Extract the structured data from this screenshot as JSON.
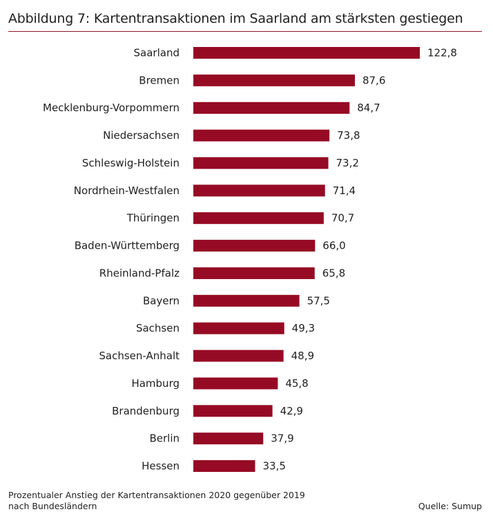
{
  "header": {
    "title": "Abbildung 7: Kartentransaktionen im Saarland am stärksten gestiegen"
  },
  "footer": {
    "note_line1": "Prozentualer Anstieg der Kartentransaktionen 2020 gegenüber 2019",
    "note_line2": "nach Bundesländern",
    "source": "Quelle: Sumup"
  },
  "colors": {
    "bar": "#960a24",
    "title_rule": "#8c1a2c",
    "text": "#1f1f1f"
  },
  "chart_data": {
    "type": "bar",
    "orientation": "horizontal",
    "title": "Abbildung 7: Kartentransaktionen im Saarland am stärksten gestiegen",
    "xlabel": "",
    "ylabel": "",
    "grid": false,
    "xlim": [
      0,
      122.8
    ],
    "categories": [
      "Saarland",
      "Bremen",
      "Mecklenburg-Vorpommern",
      "Niedersachsen",
      "Schleswig-Holstein",
      "Nordrhein-Westfalen",
      "Thüringen",
      "Baden-Württemberg",
      "Rheinland-Pfalz",
      "Bayern",
      "Sachsen",
      "Sachsen-Anhalt",
      "Hamburg",
      "Brandenburg",
      "Berlin",
      "Hessen"
    ],
    "values": [
      122.8,
      87.6,
      84.7,
      73.8,
      73.2,
      71.4,
      70.7,
      66.0,
      65.8,
      57.5,
      49.3,
      48.9,
      45.8,
      42.9,
      37.9,
      33.5
    ],
    "value_labels": [
      "122,8",
      "87,6",
      "84,7",
      "73,8",
      "73,2",
      "71,4",
      "70,7",
      "66,0",
      "65,8",
      "57,5",
      "49,3",
      "48,9",
      "45,8",
      "42,9",
      "37,9",
      "33,5"
    ]
  }
}
